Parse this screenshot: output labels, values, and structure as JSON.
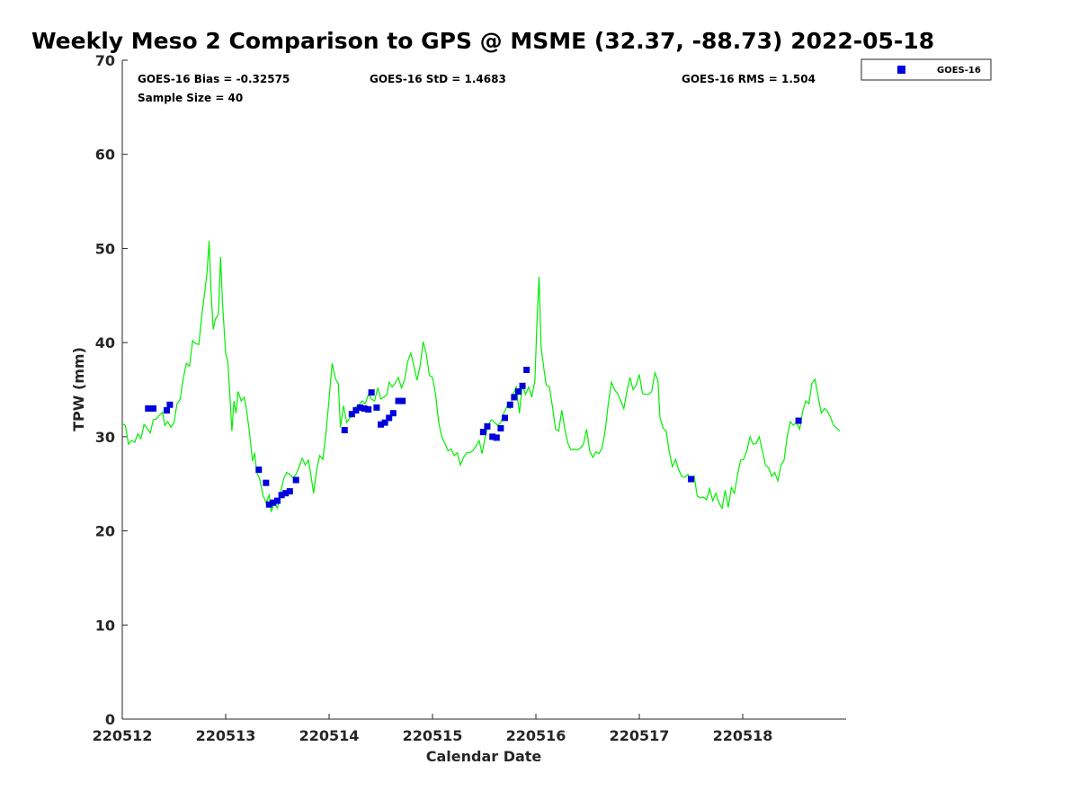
{
  "chart_data": {
    "type": "scatter",
    "title": "Weekly Meso 2 Comparison to GPS @ MSME (32.37, -88.73) 2022-05-18",
    "xlabel": "Calendar Date",
    "ylabel": "TPW (mm)",
    "xlim": [
      0,
      7.0
    ],
    "ylim": [
      0,
      70
    ],
    "x_ticks": [
      {
        "value": 0,
        "label": "220512"
      },
      {
        "value": 1,
        "label": "220513"
      },
      {
        "value": 2,
        "label": "220514"
      },
      {
        "value": 3,
        "label": "220515"
      },
      {
        "value": 4,
        "label": "220516"
      },
      {
        "value": 5,
        "label": "220517"
      },
      {
        "value": 6,
        "label": "220518"
      }
    ],
    "y_ticks": [
      0,
      10,
      20,
      30,
      40,
      50,
      60,
      70
    ],
    "grid": false,
    "legend_position": "top-right outside",
    "stats": {
      "bias": "GOES-16 Bias = -0.32575",
      "sample_size": "Sample Size = 40",
      "std": "GOES-16 StD = 1.4683",
      "rms": "GOES-16 RMS = 1.504"
    },
    "line_series": {
      "color": "#00ee00",
      "points": [
        [
          0.0,
          31.4
        ],
        [
          0.03,
          31.2
        ],
        [
          0.06,
          29.2
        ],
        [
          0.09,
          29.6
        ],
        [
          0.12,
          29.4
        ],
        [
          0.15,
          30.3
        ],
        [
          0.18,
          29.8
        ],
        [
          0.21,
          31.3
        ],
        [
          0.24,
          30.9
        ],
        [
          0.27,
          30.4
        ],
        [
          0.3,
          31.8
        ],
        [
          0.33,
          31.9
        ],
        [
          0.36,
          32.3
        ],
        [
          0.39,
          32.6
        ],
        [
          0.41,
          31.2
        ],
        [
          0.44,
          31.6
        ],
        [
          0.47,
          31.0
        ],
        [
          0.5,
          31.5
        ],
        [
          0.53,
          33.5
        ],
        [
          0.56,
          34.0
        ],
        [
          0.59,
          36.2
        ],
        [
          0.62,
          37.8
        ],
        [
          0.65,
          37.5
        ],
        [
          0.68,
          40.2
        ],
        [
          0.71,
          39.9
        ],
        [
          0.74,
          39.8
        ],
        [
          0.77,
          43.0
        ],
        [
          0.8,
          45.6
        ],
        [
          0.82,
          47.5
        ],
        [
          0.84,
          50.8
        ],
        [
          0.86,
          45.0
        ],
        [
          0.88,
          41.4
        ],
        [
          0.9,
          42.5
        ],
        [
          0.93,
          43.0
        ],
        [
          0.95,
          49.1
        ],
        [
          0.97,
          44.0
        ],
        [
          1.0,
          38.8
        ],
        [
          1.02,
          38.0
        ],
        [
          1.04,
          34.5
        ],
        [
          1.06,
          30.6
        ],
        [
          1.08,
          33.8
        ],
        [
          1.1,
          32.5
        ],
        [
          1.12,
          34.8
        ],
        [
          1.15,
          33.8
        ],
        [
          1.18,
          34.2
        ],
        [
          1.2,
          33.0
        ],
        [
          1.23,
          30.5
        ],
        [
          1.26,
          27.4
        ],
        [
          1.28,
          28.3
        ],
        [
          1.3,
          26.2
        ],
        [
          1.33,
          25.5
        ],
        [
          1.36,
          23.8
        ],
        [
          1.39,
          23.0
        ],
        [
          1.42,
          23.8
        ],
        [
          1.44,
          22.0
        ],
        [
          1.47,
          23.0
        ],
        [
          1.5,
          22.4
        ],
        [
          1.53,
          24.0
        ],
        [
          1.56,
          25.5
        ],
        [
          1.59,
          26.2
        ],
        [
          1.62,
          26.0
        ],
        [
          1.65,
          25.6
        ],
        [
          1.68,
          26.0
        ],
        [
          1.71,
          26.8
        ],
        [
          1.74,
          27.7
        ],
        [
          1.77,
          27.0
        ],
        [
          1.8,
          27.5
        ],
        [
          1.82,
          26.2
        ],
        [
          1.85,
          24.0
        ],
        [
          1.88,
          26.5
        ],
        [
          1.91,
          28.0
        ],
        [
          1.94,
          27.6
        ],
        [
          1.97,
          30.4
        ],
        [
          2.0,
          34.0
        ],
        [
          2.03,
          37.8
        ],
        [
          2.06,
          36.2
        ],
        [
          2.09,
          35.6
        ],
        [
          2.11,
          31.0
        ],
        [
          2.14,
          33.3
        ],
        [
          2.17,
          31.5
        ],
        [
          2.2,
          32.0
        ],
        [
          2.23,
          32.2
        ],
        [
          2.26,
          33.2
        ],
        [
          2.29,
          33.4
        ],
        [
          2.32,
          33.8
        ],
        [
          2.35,
          33.5
        ],
        [
          2.38,
          34.5
        ],
        [
          2.41,
          34.0
        ],
        [
          2.44,
          33.8
        ],
        [
          2.47,
          35.2
        ],
        [
          2.5,
          34.0
        ],
        [
          2.53,
          34.2
        ],
        [
          2.56,
          34.5
        ],
        [
          2.58,
          35.8
        ],
        [
          2.61,
          35.3
        ],
        [
          2.64,
          35.7
        ],
        [
          2.67,
          36.3
        ],
        [
          2.7,
          35.2
        ],
        [
          2.73,
          36.0
        ],
        [
          2.76,
          38.0
        ],
        [
          2.79,
          38.9
        ],
        [
          2.82,
          37.5
        ],
        [
          2.85,
          36.0
        ],
        [
          2.88,
          37.5
        ],
        [
          2.91,
          40.1
        ],
        [
          2.94,
          38.8
        ],
        [
          2.97,
          36.5
        ],
        [
          3.0,
          36.3
        ],
        [
          3.03,
          34.5
        ],
        [
          3.06,
          31.5
        ],
        [
          3.09,
          30.0
        ],
        [
          3.12,
          29.3
        ],
        [
          3.15,
          28.5
        ],
        [
          3.18,
          28.7
        ],
        [
          3.21,
          28.0
        ],
        [
          3.24,
          28.3
        ],
        [
          3.27,
          27.0
        ],
        [
          3.3,
          27.8
        ],
        [
          3.33,
          28.3
        ],
        [
          3.36,
          28.3
        ],
        [
          3.39,
          28.5
        ],
        [
          3.42,
          29.0
        ],
        [
          3.45,
          29.6
        ],
        [
          3.48,
          28.2
        ],
        [
          3.51,
          30.0
        ],
        [
          3.54,
          31.3
        ],
        [
          3.57,
          31.8
        ],
        [
          3.6,
          31.5
        ],
        [
          3.63,
          31.2
        ],
        [
          3.66,
          31.5
        ],
        [
          3.69,
          32.5
        ],
        [
          3.72,
          33.2
        ],
        [
          3.75,
          33.0
        ],
        [
          3.78,
          34.5
        ],
        [
          3.81,
          35.3
        ],
        [
          3.84,
          32.5
        ],
        [
          3.87,
          35.5
        ],
        [
          3.9,
          34.5
        ],
        [
          3.93,
          35.3
        ],
        [
          3.96,
          34.2
        ],
        [
          3.99,
          36.0
        ],
        [
          4.01,
          42.0
        ],
        [
          4.03,
          47.0
        ],
        [
          4.05,
          39.5
        ],
        [
          4.08,
          37.0
        ],
        [
          4.1,
          35.5
        ],
        [
          4.13,
          35.3
        ],
        [
          4.16,
          33.2
        ],
        [
          4.19,
          30.8
        ],
        [
          4.22,
          30.6
        ],
        [
          4.25,
          32.8
        ],
        [
          4.28,
          30.8
        ],
        [
          4.31,
          29.3
        ],
        [
          4.34,
          28.6
        ],
        [
          4.37,
          28.7
        ],
        [
          4.4,
          28.6
        ],
        [
          4.43,
          28.8
        ],
        [
          4.46,
          29.2
        ],
        [
          4.49,
          30.8
        ],
        [
          4.52,
          28.5
        ],
        [
          4.55,
          27.8
        ],
        [
          4.58,
          28.4
        ],
        [
          4.61,
          28.2
        ],
        [
          4.64,
          28.8
        ],
        [
          4.67,
          30.6
        ],
        [
          4.7,
          33.5
        ],
        [
          4.73,
          35.8
        ],
        [
          4.76,
          35.0
        ],
        [
          4.79,
          34.6
        ],
        [
          4.82,
          33.8
        ],
        [
          4.85,
          33.0
        ],
        [
          4.88,
          34.8
        ],
        [
          4.91,
          36.3
        ],
        [
          4.94,
          35.0
        ],
        [
          4.97,
          35.5
        ],
        [
          5.0,
          36.6
        ],
        [
          5.03,
          34.6
        ],
        [
          5.06,
          34.5
        ],
        [
          5.09,
          34.5
        ],
        [
          5.12,
          34.8
        ],
        [
          5.15,
          36.8
        ],
        [
          5.18,
          36.0
        ],
        [
          5.2,
          32.0
        ],
        [
          5.23,
          30.9
        ],
        [
          5.26,
          30.6
        ],
        [
          5.29,
          28.4
        ],
        [
          5.32,
          26.8
        ],
        [
          5.35,
          27.6
        ],
        [
          5.38,
          26.5
        ],
        [
          5.41,
          25.8
        ],
        [
          5.44,
          25.7
        ],
        [
          5.47,
          26.0
        ],
        [
          5.5,
          25.3
        ],
        [
          5.53,
          25.8
        ],
        [
          5.56,
          23.7
        ],
        [
          5.59,
          23.5
        ],
        [
          5.62,
          23.6
        ],
        [
          5.65,
          23.3
        ],
        [
          5.68,
          24.5
        ],
        [
          5.71,
          23.2
        ],
        [
          5.74,
          24.0
        ],
        [
          5.77,
          23.0
        ],
        [
          5.8,
          22.4
        ],
        [
          5.83,
          24.3
        ],
        [
          5.86,
          22.5
        ],
        [
          5.89,
          24.6
        ],
        [
          5.92,
          24.0
        ],
        [
          5.95,
          26.0
        ],
        [
          5.98,
          27.5
        ],
        [
          6.01,
          27.6
        ],
        [
          6.04,
          28.5
        ],
        [
          6.07,
          30.0
        ],
        [
          6.1,
          29.2
        ],
        [
          6.13,
          29.3
        ],
        [
          6.16,
          30.0
        ],
        [
          6.19,
          28.5
        ],
        [
          6.22,
          27.0
        ],
        [
          6.25,
          26.7
        ],
        [
          6.28,
          25.8
        ],
        [
          6.31,
          26.2
        ],
        [
          6.34,
          25.3
        ],
        [
          6.37,
          27.0
        ],
        [
          6.4,
          27.5
        ],
        [
          6.43,
          30.0
        ],
        [
          6.46,
          31.6
        ],
        [
          6.49,
          31.2
        ],
        [
          6.52,
          31.5
        ],
        [
          6.55,
          30.8
        ],
        [
          6.58,
          32.7
        ],
        [
          6.61,
          33.8
        ],
        [
          6.64,
          33.5
        ],
        [
          6.67,
          35.7
        ],
        [
          6.7,
          36.1
        ],
        [
          6.73,
          34.2
        ],
        [
          6.76,
          32.5
        ],
        [
          6.79,
          33.0
        ],
        [
          6.82,
          32.7
        ],
        [
          6.85,
          32.0
        ],
        [
          6.88,
          31.2
        ],
        [
          6.91,
          30.9
        ],
        [
          6.94,
          30.6
        ]
      ]
    },
    "series": [
      {
        "name": "GOES-16",
        "color": "#0000dd",
        "points": [
          [
            0.25,
            33.0
          ],
          [
            0.3,
            33.0
          ],
          [
            0.43,
            32.8
          ],
          [
            0.46,
            33.4
          ],
          [
            1.32,
            26.5
          ],
          [
            1.39,
            25.1
          ],
          [
            1.42,
            22.8
          ],
          [
            1.46,
            23.0
          ],
          [
            1.5,
            23.2
          ],
          [
            1.54,
            23.8
          ],
          [
            1.58,
            24.0
          ],
          [
            1.62,
            24.2
          ],
          [
            1.68,
            25.4
          ],
          [
            2.15,
            30.7
          ],
          [
            2.22,
            32.4
          ],
          [
            2.26,
            32.8
          ],
          [
            2.3,
            33.1
          ],
          [
            2.34,
            33.0
          ],
          [
            2.38,
            32.9
          ],
          [
            2.41,
            34.7
          ],
          [
            2.46,
            33.1
          ],
          [
            2.5,
            31.3
          ],
          [
            2.54,
            31.5
          ],
          [
            2.58,
            32.0
          ],
          [
            2.62,
            32.5
          ],
          [
            2.67,
            33.8
          ],
          [
            2.71,
            33.8
          ],
          [
            3.49,
            30.5
          ],
          [
            3.53,
            31.1
          ],
          [
            3.58,
            30.0
          ],
          [
            3.62,
            29.9
          ],
          [
            3.66,
            30.9
          ],
          [
            3.7,
            32.0
          ],
          [
            3.75,
            33.4
          ],
          [
            3.79,
            34.2
          ],
          [
            3.83,
            34.8
          ],
          [
            3.87,
            35.4
          ],
          [
            3.91,
            37.1
          ],
          [
            5.5,
            25.5
          ],
          [
            6.54,
            31.7
          ]
        ]
      }
    ]
  }
}
